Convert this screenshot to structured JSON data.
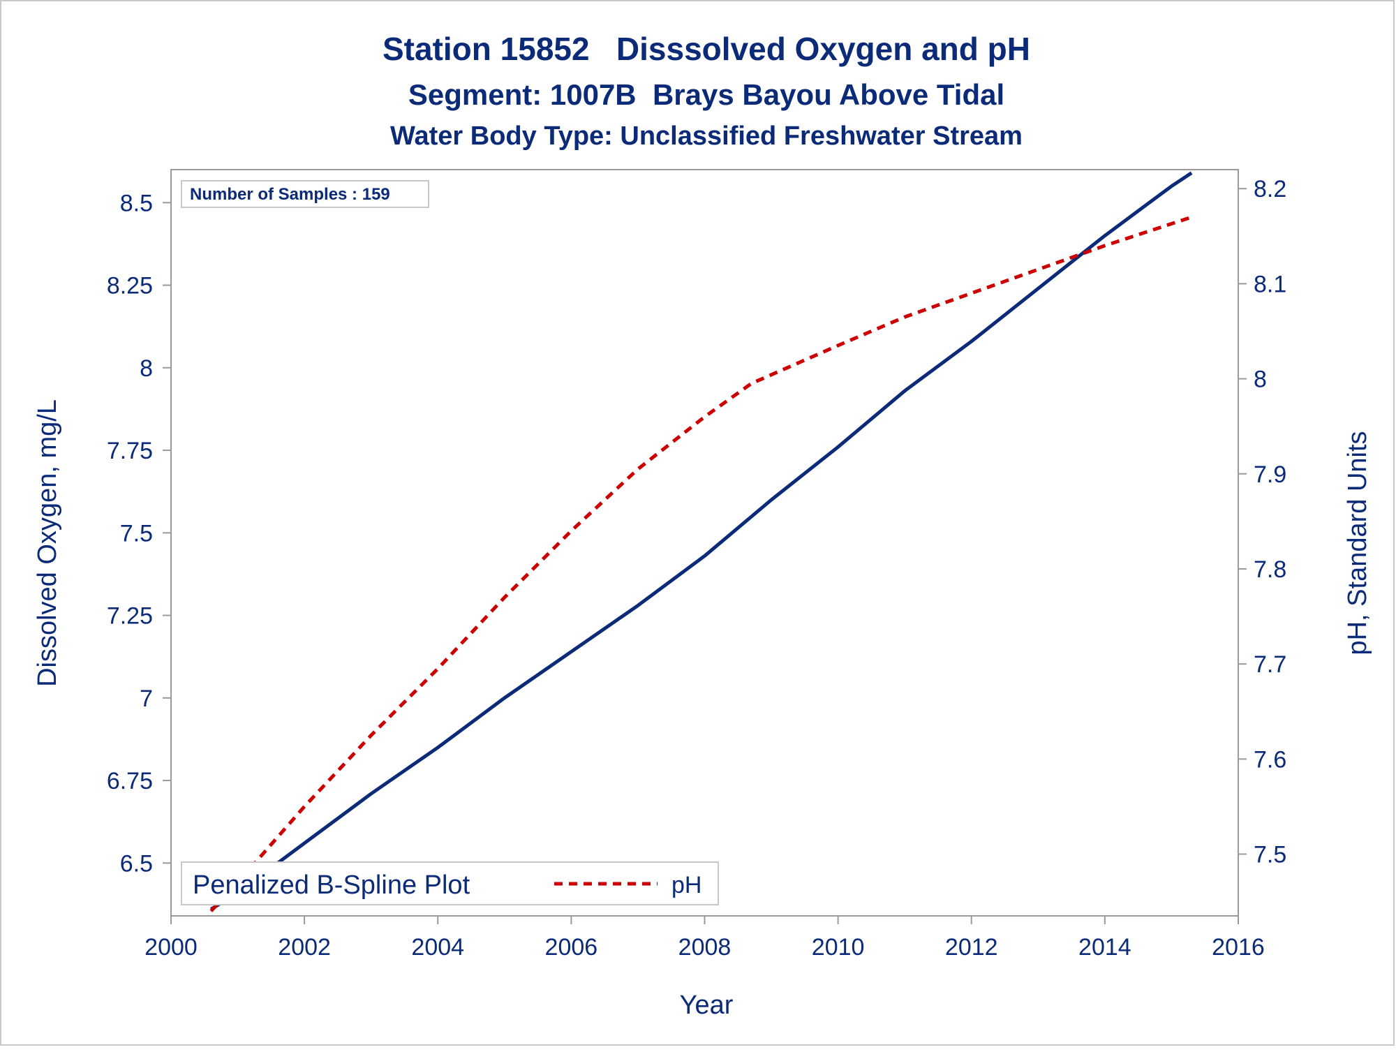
{
  "chart_data": {
    "type": "line",
    "titles": [
      "Station 15852   Disssolved Oxygen and pH",
      "Segment: 1007B  Brays Bayou Above Tidal",
      "Water Body Type: Unclassified Freshwater Stream"
    ],
    "xlabel": "Year",
    "ylabel_left": "Dissolved Oxygen, mg/L",
    "ylabel_right": "pH, Standard Units",
    "x_ticks": [
      "2000",
      "2002",
      "2004",
      "2006",
      "2008",
      "2010",
      "2012",
      "2014",
      "2016"
    ],
    "y_left_ticks": [
      "6.5",
      "6.75",
      "7",
      "7.25",
      "7.5",
      "7.75",
      "8",
      "8.25",
      "8.5"
    ],
    "y_right_ticks": [
      "7.5",
      "7.6",
      "7.7",
      "7.8",
      "7.9",
      "8",
      "8.1",
      "8.2"
    ],
    "xlim": [
      2000,
      2016
    ],
    "ylim_left": [
      6.34,
      8.6
    ],
    "ylim_right": [
      7.435,
      8.22
    ],
    "grid": false,
    "annotation": "Number of Samples : 159",
    "legend": {
      "position": "bottom-left",
      "title": "Penalized B-Spline Plot",
      "entries": [
        "pH"
      ]
    },
    "series": [
      {
        "axis": "left",
        "color": "#0b2a78",
        "style": "solid",
        "points": [
          [
            2000.6,
            6.36
          ],
          [
            2001.0,
            6.41
          ],
          [
            2002.0,
            6.56
          ],
          [
            2003.0,
            6.71
          ],
          [
            2004.0,
            6.85
          ],
          [
            2005.0,
            7.0
          ],
          [
            2006.0,
            7.14
          ],
          [
            2007.0,
            7.28
          ],
          [
            2008.0,
            7.43
          ],
          [
            2009.0,
            7.6
          ],
          [
            2010.0,
            7.76
          ],
          [
            2011.0,
            7.93
          ],
          [
            2012.0,
            8.08
          ],
          [
            2013.0,
            8.24
          ],
          [
            2014.0,
            8.4
          ],
          [
            2015.0,
            8.55
          ],
          [
            2015.3,
            8.59
          ]
        ]
      },
      {
        "name": "pH",
        "axis": "right",
        "color": "#cc0000",
        "style": "dashed",
        "points": [
          [
            2000.6,
            7.44
          ],
          [
            2001.0,
            7.47
          ],
          [
            2002.0,
            7.55
          ],
          [
            2003.0,
            7.625
          ],
          [
            2004.0,
            7.695
          ],
          [
            2005.0,
            7.77
          ],
          [
            2006.0,
            7.84
          ],
          [
            2007.0,
            7.905
          ],
          [
            2008.0,
            7.96
          ],
          [
            2008.7,
            7.995
          ],
          [
            2010.0,
            8.035
          ],
          [
            2011.0,
            8.065
          ],
          [
            2012.0,
            8.09
          ],
          [
            2013.0,
            8.115
          ],
          [
            2014.0,
            8.14
          ],
          [
            2015.3,
            8.17
          ]
        ]
      }
    ]
  }
}
